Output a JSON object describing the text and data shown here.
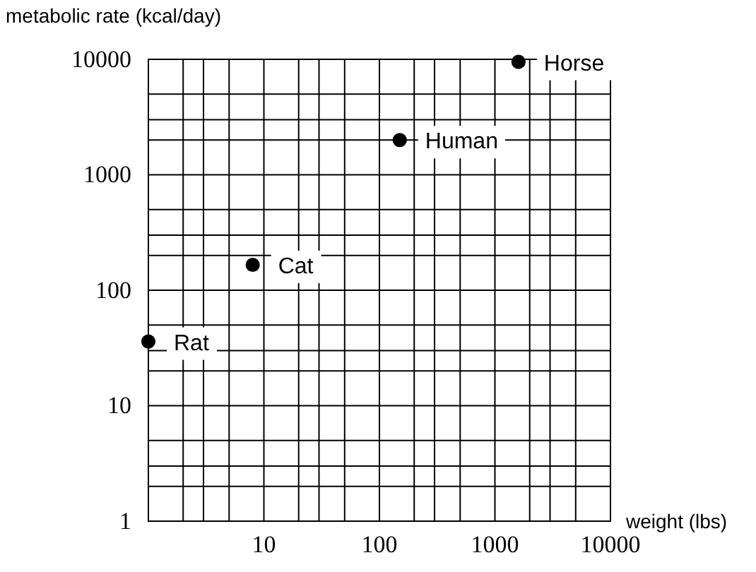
{
  "chart_data": {
    "type": "scatter",
    "xlabel": "weight (lbs)",
    "ylabel": "metabolic rate (kcal/day)",
    "log": "xy",
    "grid": true,
    "marker": "circle",
    "xlim": [
      1,
      10000
    ],
    "ylim": [
      1,
      10000
    ],
    "xticks": [
      {
        "value": 1,
        "label": null
      },
      {
        "value": 2,
        "label": null
      },
      {
        "value": 3,
        "label": null
      },
      {
        "value": 5,
        "label": null
      },
      10,
      {
        "value": 20,
        "label": null
      },
      {
        "value": 30,
        "label": null
      },
      {
        "value": 50,
        "label": null
      },
      100,
      {
        "value": 200,
        "label": null
      },
      {
        "value": 300,
        "label": null
      },
      {
        "value": 500,
        "label": null
      },
      1000,
      {
        "value": 2000,
        "label": null
      },
      {
        "value": 3000,
        "label": null
      },
      {
        "value": 5000,
        "label": null
      },
      10000
    ],
    "yticks": [
      1,
      {
        "value": 2,
        "label": null
      },
      {
        "value": 3,
        "label": null
      },
      {
        "value": 5,
        "label": null
      },
      10,
      {
        "value": 20,
        "label": null
      },
      {
        "value": 30,
        "label": null
      },
      {
        "value": 50,
        "label": null
      },
      100,
      {
        "value": 200,
        "label": null
      },
      {
        "value": 300,
        "label": null
      },
      {
        "value": 500,
        "label": null
      },
      1000,
      {
        "value": 2000,
        "label": null
      },
      {
        "value": 3000,
        "label": null
      },
      {
        "value": 5000,
        "label": null
      },
      10000
    ],
    "series": [
      {
        "color": "#000000",
        "x": [
          1,
          8,
          150,
          1600
        ],
        "values": [
          36,
          166,
          2000,
          9500
        ]
      }
    ],
    "annotations": [
      {
        "text": "Rat",
        "x": 1,
        "y": 36
      },
      {
        "text": "Cat",
        "x": 8,
        "y": 166
      },
      {
        "text": "Human",
        "x": 150,
        "y": 2000
      },
      {
        "text": "Horse",
        "x": 1600,
        "y": 9500
      }
    ]
  }
}
